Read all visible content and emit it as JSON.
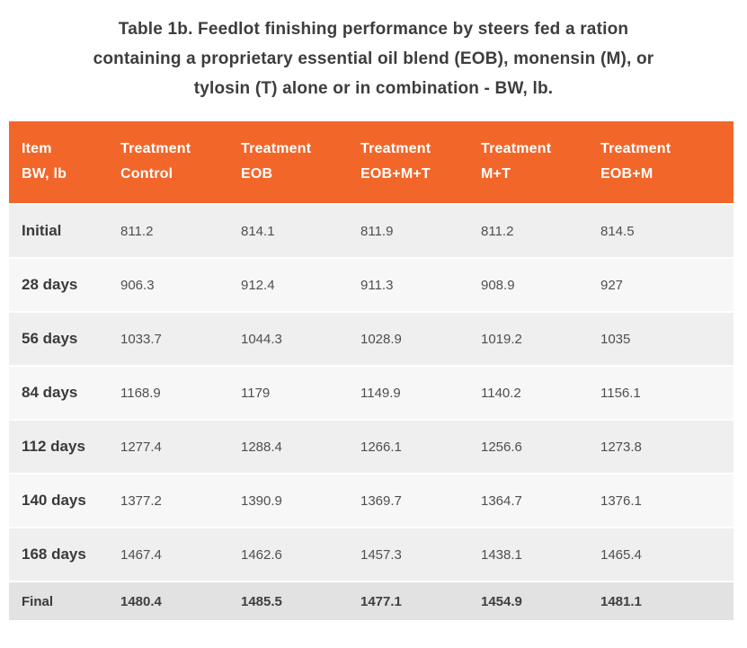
{
  "page": {
    "title": "Table 1b. Feedlot finishing performance by steers fed a ration containing a proprietary essential oil blend (EOB), monensin (M), or tylosin (T) alone or in combination - BW, lb.",
    "title_lines": [
      "Table 1b. Feedlot finishing performance by steers fed a ration",
      "containing a proprietary essential oil blend (EOB), monensin (M), or",
      "tylosin (T) alone or in combination - BW, lb."
    ]
  },
  "colors": {
    "header_bg": "#F2662A",
    "header_text": "#FFFFFF",
    "row_odd_bg": "#EFEFEF",
    "row_even_bg": "#F7F7F7",
    "final_row_bg": "#E2E2E2",
    "title_text": "#3D3D3D",
    "label_text": "#3A3A3A",
    "value_text": "#4F4F4F",
    "final_value_text": "#3F3F3F"
  },
  "table": {
    "columns": [
      {
        "line1": "Item",
        "line2": "BW, lb"
      },
      {
        "line1": "Treatment",
        "line2": "Control"
      },
      {
        "line1": "Treatment",
        "line2": "EOB"
      },
      {
        "line1": "Treatment",
        "line2": "EOB+M+T"
      },
      {
        "line1": "Treatment",
        "line2": "M+T"
      },
      {
        "line1": "Treatment",
        "line2": "EOB+M"
      }
    ],
    "rows": [
      {
        "label": "Initial",
        "values": [
          "811.2",
          "814.1",
          "811.9",
          "811.2",
          "814.5"
        ],
        "emphasized": false
      },
      {
        "label": "28 days",
        "values": [
          "906.3",
          "912.4",
          "911.3",
          "908.9",
          "927"
        ],
        "emphasized": false
      },
      {
        "label": "56 days",
        "values": [
          "1033.7",
          "1044.3",
          "1028.9",
          "1019.2",
          "1035"
        ],
        "emphasized": false
      },
      {
        "label": "84 days",
        "values": [
          "1168.9",
          "1179",
          "1149.9",
          "1140.2",
          "1156.1"
        ],
        "emphasized": false
      },
      {
        "label": "112 days",
        "values": [
          "1277.4",
          "1288.4",
          "1266.1",
          "1256.6",
          "1273.8"
        ],
        "emphasized": false
      },
      {
        "label": "140 days",
        "values": [
          "1377.2",
          "1390.9",
          "1369.7",
          "1364.7",
          "1376.1"
        ],
        "emphasized": false
      },
      {
        "label": "168 days",
        "values": [
          "1467.4",
          "1462.6",
          "1457.3",
          "1438.1",
          "1465.4"
        ],
        "emphasized": false
      },
      {
        "label": "Final",
        "values": [
          "1480.4",
          "1485.5",
          "1477.1",
          "1454.9",
          "1481.1"
        ],
        "emphasized": true
      }
    ]
  },
  "chart_data": {
    "type": "table",
    "title": "Table 1b. Feedlot finishing performance by steers fed a ration containing a proprietary essential oil blend (EOB), monensin (M), or tylosin (T) alone or in combination - BW, lb.",
    "ylabel": "BW, lb",
    "categories": [
      "Initial",
      "28 days",
      "56 days",
      "84 days",
      "112 days",
      "140 days",
      "168 days",
      "Final"
    ],
    "series": [
      {
        "name": "Control",
        "values": [
          811.2,
          906.3,
          1033.7,
          1168.9,
          1277.4,
          1377.2,
          1467.4,
          1480.4
        ]
      },
      {
        "name": "EOB",
        "values": [
          814.1,
          912.4,
          1044.3,
          1179,
          1288.4,
          1390.9,
          1462.6,
          1485.5
        ]
      },
      {
        "name": "EOB+M+T",
        "values": [
          811.9,
          911.3,
          1028.9,
          1149.9,
          1266.1,
          1369.7,
          1457.3,
          1477.1
        ]
      },
      {
        "name": "M+T",
        "values": [
          811.2,
          908.9,
          1019.2,
          1140.2,
          1256.6,
          1364.7,
          1438.1,
          1454.9
        ]
      },
      {
        "name": "EOB+M",
        "values": [
          814.5,
          927,
          1035,
          1156.1,
          1273.8,
          1376.1,
          1465.4,
          1481.1
        ]
      }
    ]
  }
}
